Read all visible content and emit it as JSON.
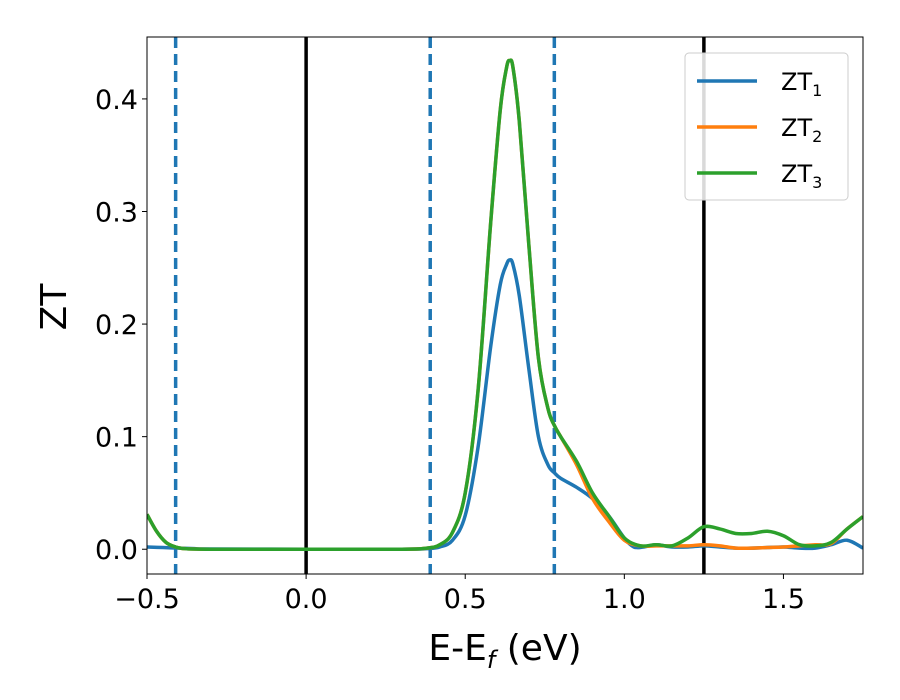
{
  "chart_data": {
    "type": "line",
    "xlabel_main": "E-E",
    "xlabel_sub": "f",
    "xlabel_tail": " (eV)",
    "ylabel": "ZT",
    "xlim": [
      -0.5,
      1.75
    ],
    "ylim": [
      -0.022,
      0.455
    ],
    "xticks": [
      {
        "value": -0.5,
        "label": "−0.5"
      },
      {
        "value": 0.0,
        "label": "0.0"
      },
      {
        "value": 0.5,
        "label": "0.5"
      },
      {
        "value": 1.0,
        "label": "1.0"
      },
      {
        "value": 1.5,
        "label": "1.5"
      }
    ],
    "yticks": [
      {
        "value": 0.0,
        "label": "0.0"
      },
      {
        "value": 0.1,
        "label": "0.1"
      },
      {
        "value": 0.2,
        "label": "0.2"
      },
      {
        "value": 0.3,
        "label": "0.3"
      },
      {
        "value": 0.4,
        "label": "0.4"
      }
    ],
    "vlines_solid": [
      0.0,
      1.25
    ],
    "vlines_dashed": [
      -0.41,
      0.39,
      0.78
    ],
    "legend_position": "top-right",
    "series": [
      {
        "name": "ZT",
        "sub": "1",
        "color": "#1f77b4",
        "x": [
          -0.5,
          -0.45,
          -0.4,
          -0.35,
          -0.3,
          0.0,
          0.3,
          0.38,
          0.42,
          0.46,
          0.5,
          0.54,
          0.58,
          0.61,
          0.63,
          0.64,
          0.65,
          0.67,
          0.7,
          0.73,
          0.76,
          0.78,
          0.8,
          0.85,
          0.9,
          0.95,
          1.0,
          1.03,
          1.06,
          1.1,
          1.15,
          1.2,
          1.25,
          1.3,
          1.35,
          1.4,
          1.45,
          1.5,
          1.55,
          1.6,
          1.65,
          1.7,
          1.75
        ],
        "y": [
          0.002,
          0.0015,
          0.001,
          0.0005,
          0.0002,
          0.0,
          0.0,
          0.0005,
          0.002,
          0.008,
          0.03,
          0.09,
          0.18,
          0.235,
          0.253,
          0.257,
          0.253,
          0.225,
          0.16,
          0.1,
          0.075,
          0.068,
          0.063,
          0.055,
          0.045,
          0.03,
          0.01,
          0.002,
          0.002,
          0.004,
          0.002,
          0.002,
          0.003,
          0.002,
          0.001,
          0.001,
          0.0015,
          0.002,
          0.001,
          0.001,
          0.004,
          0.008,
          0.001
        ]
      },
      {
        "name": "ZT",
        "sub": "2",
        "color": "#ff7f0e",
        "x": [
          -0.5,
          -0.47,
          -0.44,
          -0.41,
          -0.38,
          -0.3,
          0.0,
          0.3,
          0.38,
          0.42,
          0.46,
          0.5,
          0.54,
          0.58,
          0.61,
          0.63,
          0.64,
          0.65,
          0.67,
          0.7,
          0.73,
          0.76,
          0.78,
          0.8,
          0.85,
          0.9,
          0.95,
          1.0,
          1.05,
          1.1,
          1.15,
          1.2,
          1.25,
          1.3,
          1.35,
          1.4,
          1.45,
          1.5,
          1.55,
          1.6,
          1.65,
          1.7,
          1.75
        ],
        "y": [
          0.031,
          0.016,
          0.006,
          0.002,
          0.0005,
          0.0,
          0.0,
          0.0,
          0.001,
          0.004,
          0.015,
          0.05,
          0.14,
          0.29,
          0.39,
          0.428,
          0.434,
          0.428,
          0.38,
          0.27,
          0.17,
          0.125,
          0.11,
          0.1,
          0.075,
          0.045,
          0.025,
          0.008,
          0.003,
          0.003,
          0.003,
          0.003,
          0.004,
          0.003,
          0.001,
          0.001,
          0.0015,
          0.002,
          0.003,
          0.004,
          0.005,
          0.018,
          0.029
        ]
      },
      {
        "name": "ZT",
        "sub": "3",
        "color": "#2ca02c",
        "x": [
          -0.5,
          -0.47,
          -0.44,
          -0.41,
          -0.38,
          -0.3,
          0.0,
          0.3,
          0.38,
          0.42,
          0.46,
          0.5,
          0.54,
          0.58,
          0.61,
          0.63,
          0.64,
          0.65,
          0.67,
          0.7,
          0.73,
          0.76,
          0.78,
          0.8,
          0.85,
          0.9,
          0.95,
          1.0,
          1.05,
          1.1,
          1.15,
          1.2,
          1.25,
          1.3,
          1.35,
          1.4,
          1.45,
          1.5,
          1.55,
          1.6,
          1.65,
          1.7,
          1.75
        ],
        "y": [
          0.031,
          0.016,
          0.006,
          0.002,
          0.0005,
          0.0,
          0.0,
          0.0,
          0.001,
          0.004,
          0.015,
          0.05,
          0.14,
          0.29,
          0.39,
          0.428,
          0.434,
          0.428,
          0.38,
          0.27,
          0.17,
          0.125,
          0.11,
          0.1,
          0.078,
          0.05,
          0.03,
          0.01,
          0.003,
          0.004,
          0.003,
          0.01,
          0.02,
          0.018,
          0.014,
          0.014,
          0.016,
          0.012,
          0.004,
          0.003,
          0.006,
          0.018,
          0.029
        ]
      }
    ]
  }
}
